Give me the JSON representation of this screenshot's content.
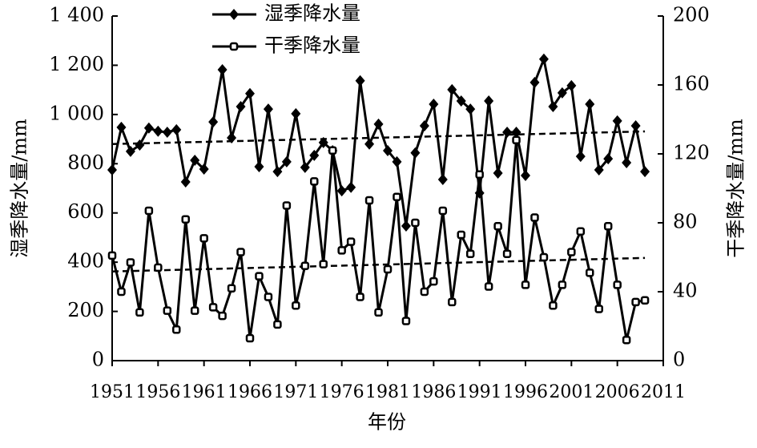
{
  "chart_data": {
    "type": "line",
    "x_label": "年份",
    "y_label": "湿季降水量/mm",
    "y2_label": "干季降水量/mm",
    "x": [
      1951,
      1952,
      1953,
      1954,
      1955,
      1956,
      1957,
      1958,
      1959,
      1960,
      1961,
      1962,
      1963,
      1964,
      1965,
      1966,
      1967,
      1968,
      1969,
      1970,
      1971,
      1972,
      1973,
      1974,
      1975,
      1976,
      1977,
      1978,
      1979,
      1980,
      1981,
      1982,
      1983,
      1984,
      1985,
      1986,
      1987,
      1988,
      1989,
      1990,
      1991,
      1992,
      1993,
      1994,
      1995,
      1996,
      1997,
      1998,
      1999,
      2000,
      2001,
      2002,
      2003,
      2004,
      2005,
      2006,
      2007,
      2008,
      2009
    ],
    "series": [
      {
        "name": "湿季降水量",
        "color": "#000000",
        "marker": "diamond",
        "values": [
          775,
          948,
          850,
          876,
          945,
          932,
          928,
          938,
          726,
          814,
          778,
          970,
          1182,
          905,
          1032,
          1085,
          788,
          1022,
          768,
          808,
          1003,
          785,
          834,
          886,
          853,
          690,
          704,
          1137,
          880,
          961,
          853,
          808,
          547,
          844,
          954,
          1042,
          736,
          1101,
          1055,
          1022,
          681,
          1055,
          762,
          928,
          928,
          752,
          1130,
          1225,
          1032,
          1088,
          1117,
          830,
          1042,
          775,
          820,
          974,
          804,
          954,
          768
        ]
      },
      {
        "name": "干季降水量",
        "color": "#000000",
        "marker": "open",
        "axis": "y2",
        "values": [
          61,
          40,
          57,
          28,
          87,
          54,
          29,
          18,
          82,
          29,
          71,
          31,
          26,
          42,
          63,
          13,
          49,
          37,
          21,
          90,
          32,
          55,
          104,
          56,
          122,
          64,
          69,
          37,
          93,
          28,
          53,
          95,
          23,
          80,
          40,
          46,
          87,
          34,
          73,
          62,
          108,
          43,
          78,
          62,
          128,
          44,
          83,
          60,
          32,
          44,
          63,
          75,
          51,
          30,
          78,
          44,
          12,
          34,
          35
        ]
      }
    ],
    "trendline": true,
    "xlim": [
      1951,
      2011
    ],
    "xticks": [
      1951,
      1956,
      1961,
      1966,
      1971,
      1976,
      1981,
      1986,
      1991,
      1996,
      2001,
      2006,
      2011
    ],
    "ylim": [
      0,
      1400
    ],
    "yticks": [
      0,
      200,
      400,
      600,
      800,
      {
        "value": 1000,
        "label": "1 000"
      },
      {
        "value": 1200,
        "label": "1 200"
      },
      {
        "value": 1400,
        "label": "1 400"
      }
    ],
    "y2lim": [
      0,
      200
    ],
    "y2ticks": [
      0,
      40,
      80,
      120,
      160,
      200
    ]
  }
}
